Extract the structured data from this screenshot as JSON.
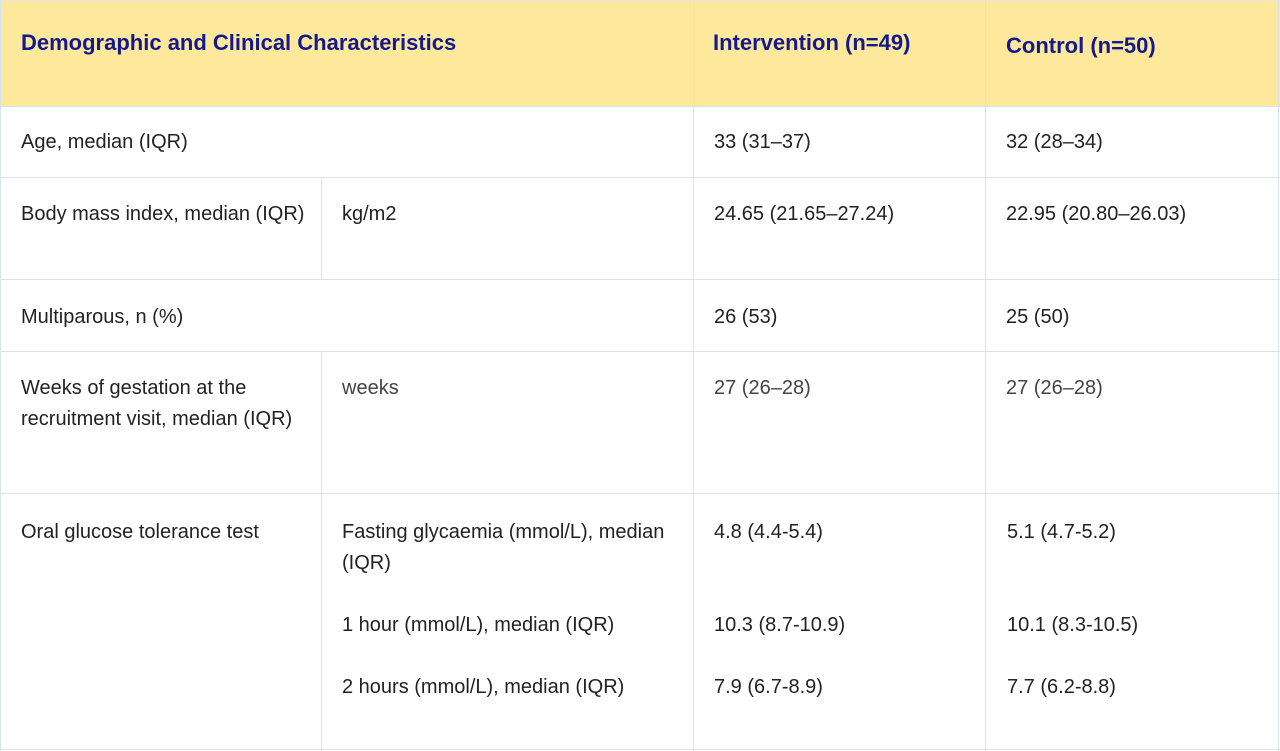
{
  "header": {
    "characteristics": "Demographic and Clinical Characteristics",
    "intervention": "Intervention (n=49)",
    "control": "Control (n=50)"
  },
  "rows": [
    {
      "label": "Age, median (IQR)",
      "intervention": "33 (31–37)",
      "control": "32 (28–34)"
    },
    {
      "label": "Body mass index, median (IQR)",
      "unit": "kg/m2",
      "intervention": "24.65 (21.65–27.24)",
      "control": "22.95 (20.80–26.03)"
    },
    {
      "label": "Multiparous, n (%)",
      "intervention": "26 (53)",
      "control": "25 (50)"
    },
    {
      "label": "Weeks of gestation at the recruitment visit, median (IQR)",
      "unit": "weeks",
      "intervention": "27 (26–28)",
      "control": "27 (26–28)"
    },
    {
      "label": "Oral glucose tolerance test",
      "subrows": [
        {
          "unit": "Fasting glycaemia (mmol/L), median (IQR)",
          "intervention": "4.8 (4.4-5.4)",
          "control": "5.1 (4.7-5.2)"
        },
        {
          "unit": "1 hour (mmol/L), median (IQR)",
          "intervention": "10.3 (8.7-10.9)",
          "control": "10.1 (8.3-10.5)"
        },
        {
          "unit": "2 hours (mmol/L), median (IQR)",
          "intervention": "7.9 (6.7-8.9)",
          "control": "7.7 (6.2-8.8)"
        }
      ]
    }
  ]
}
